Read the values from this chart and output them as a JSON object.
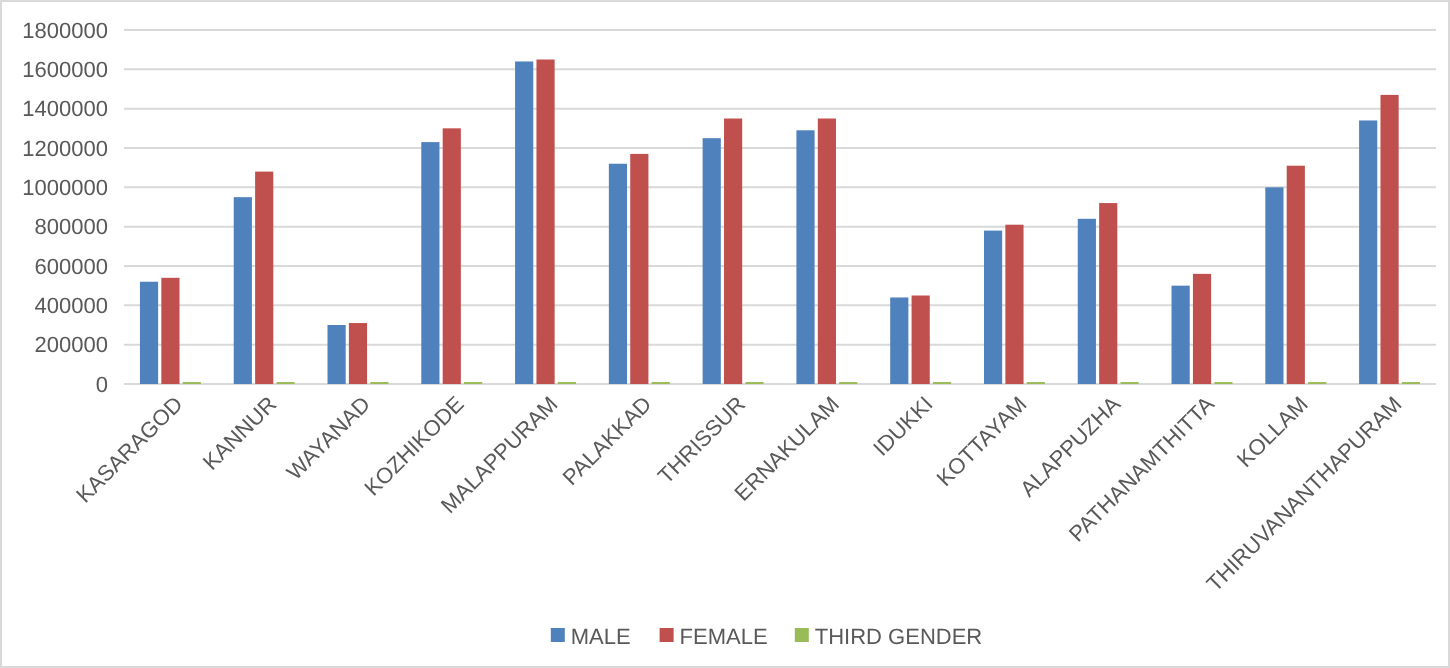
{
  "chart_data": {
    "type": "bar",
    "categories": [
      "KASARAGOD",
      "KANNUR",
      "WAYANAD",
      "KOZHIKODE",
      "MALAPPURAM",
      "PALAKKAD",
      "THRISSUR",
      "ERNAKULAM",
      "IDUKKI",
      "KOTTAYAM",
      "ALAPPUZHA",
      "PATHANAMTHITTA",
      "KOLLAM",
      "THIRUVANANTHAPURAM"
    ],
    "series": [
      {
        "name": "MALE",
        "color": "#4f81bd",
        "values": [
          520000,
          950000,
          300000,
          1230000,
          1640000,
          1120000,
          1250000,
          1290000,
          440000,
          780000,
          840000,
          500000,
          1000000,
          1340000
        ]
      },
      {
        "name": "FEMALE",
        "color": "#c0504d",
        "values": [
          540000,
          1080000,
          310000,
          1300000,
          1650000,
          1170000,
          1350000,
          1350000,
          450000,
          810000,
          920000,
          560000,
          1110000,
          1470000
        ]
      },
      {
        "name": "THIRD GENDER",
        "color": "#9bbb59",
        "values": [
          10000,
          10000,
          10000,
          10000,
          10000,
          10000,
          10000,
          10000,
          10000,
          10000,
          10000,
          10000,
          10000,
          10000
        ]
      }
    ],
    "ylim": [
      0,
      1800000
    ],
    "yticks": [
      0,
      200000,
      400000,
      600000,
      800000,
      1000000,
      1200000,
      1400000,
      1600000,
      1800000
    ],
    "grid": "y",
    "legend": "bottom"
  }
}
